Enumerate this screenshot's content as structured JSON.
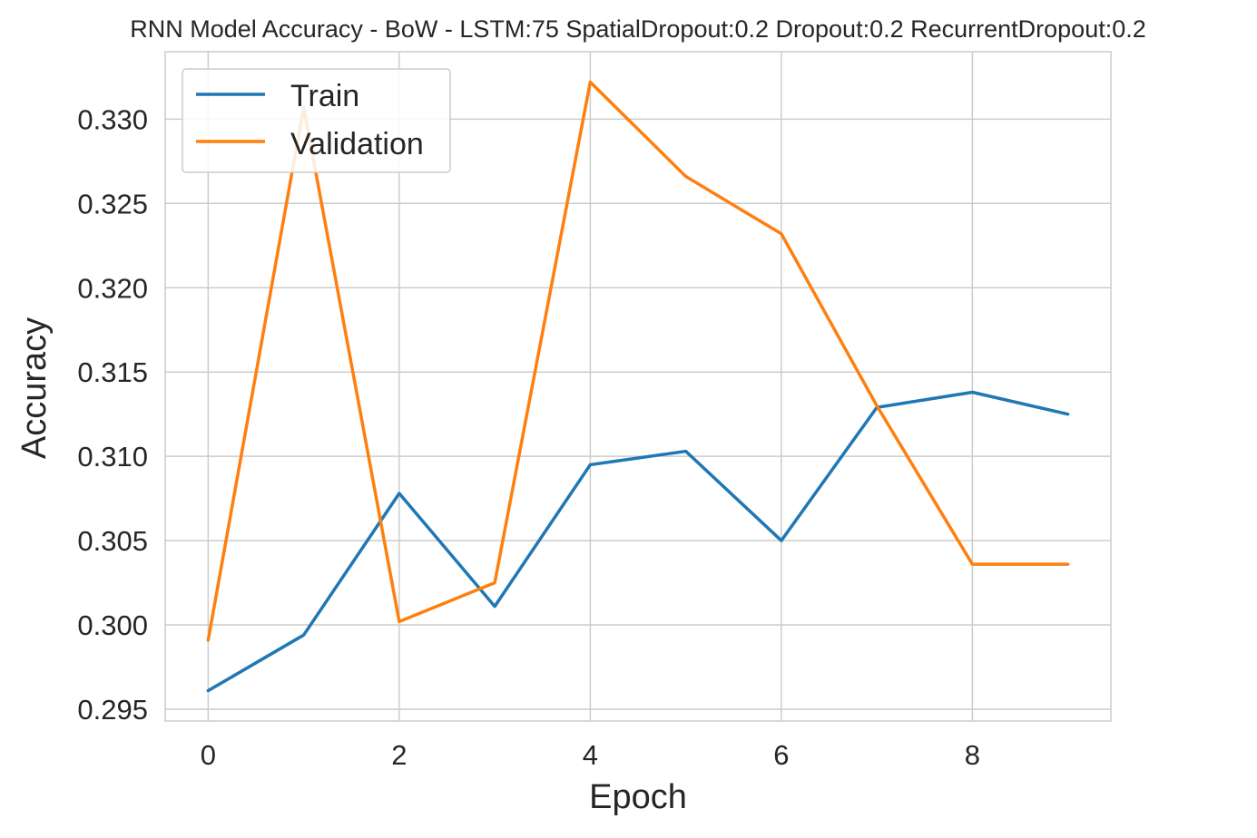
{
  "chart_data": {
    "type": "line",
    "title": "RNN Model Accuracy - BoW - LSTM:75 SpatialDropout:0.2 Dropout:0.2 RecurrentDropout:0.2",
    "xlabel": "Epoch",
    "ylabel": "Accuracy",
    "x": [
      0,
      1,
      2,
      3,
      4,
      5,
      6,
      7,
      8,
      9
    ],
    "xlim": [
      -0.45,
      9.45
    ],
    "ylim": [
      0.2943,
      0.334
    ],
    "xticks": [
      0,
      2,
      4,
      6,
      8
    ],
    "xtick_labels": [
      "0",
      "2",
      "4",
      "6",
      "8"
    ],
    "yticks": [
      0.295,
      0.3,
      0.305,
      0.31,
      0.315,
      0.32,
      0.325,
      0.33
    ],
    "ytick_labels": [
      "0.295",
      "0.300",
      "0.305",
      "0.310",
      "0.315",
      "0.320",
      "0.325",
      "0.330"
    ],
    "grid": true,
    "legend_position": "top-left",
    "series": [
      {
        "name": "Train",
        "color": "#1f77b4",
        "values": [
          0.2961,
          0.2994,
          0.3078,
          0.3011,
          0.3095,
          0.3103,
          0.305,
          0.3129,
          0.3138,
          0.3125
        ]
      },
      {
        "name": "Validation",
        "color": "#ff7f0e",
        "values": [
          0.2991,
          0.3307,
          0.3002,
          0.3025,
          0.3322,
          0.3266,
          0.3232,
          0.313,
          0.3036,
          0.3036
        ]
      }
    ]
  }
}
